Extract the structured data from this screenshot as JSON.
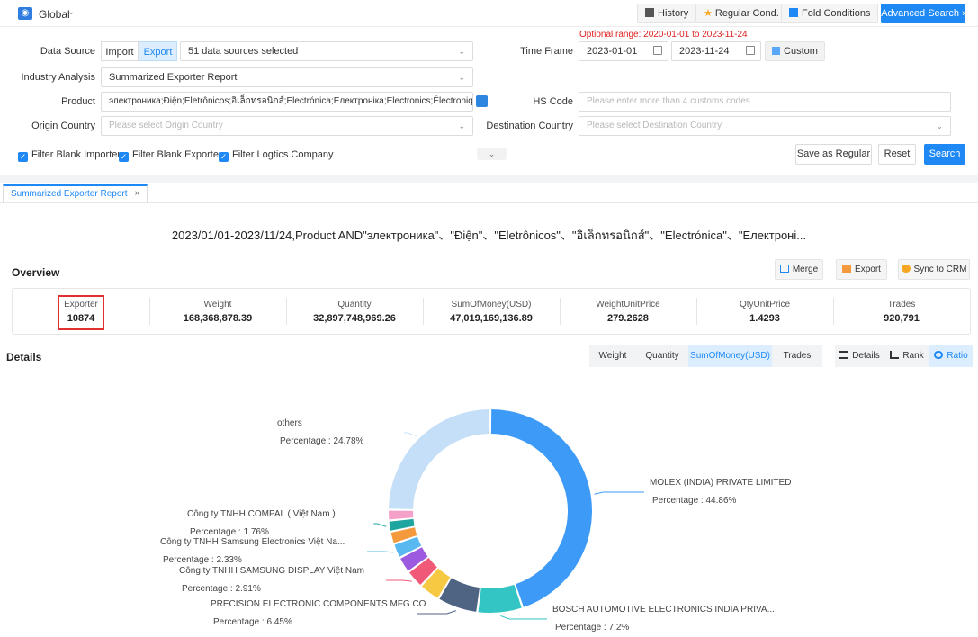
{
  "topbar": {
    "global_label": "Global",
    "history_label": "History",
    "regular_cond_label": "Regular Cond.",
    "fold_conditions_label": "Fold Conditions",
    "advanced_search_label": "Advanced Search ›"
  },
  "form": {
    "data_source_label": "Data Source",
    "import_label": "Import",
    "export_label": "Export",
    "data_sources_value": "51 data sources selected",
    "industry_analysis_label": "Industry Analysis",
    "industry_analysis_value": "Summarized Exporter Report",
    "product_label": "Product",
    "product_value": "электроника;Điện;Eletrônicos;อิเล็กทรอนิกส์;Electrónica;Електроніка;Electronics;Électronique;Elect",
    "origin_country_label": "Origin Country",
    "origin_country_placeholder": "Please select Origin Country",
    "optional_range": "Optional range:  2020-01-01 to 2023-11-24",
    "time_frame_label": "Time Frame",
    "date_start": "2023-01-01",
    "date_end": "2023-11-24",
    "custom_label": "Custom",
    "hs_code_label": "HS Code",
    "hs_code_placeholder": "Please enter more than 4 customs codes",
    "destination_country_label": "Destination Country",
    "destination_country_placeholder": "Please select Destination Country",
    "filter_blank_importers": "Filter Blank Importers",
    "filter_blank_exporters": "Filter Blank Exporters",
    "filter_logistics": "Filter Logtics Company",
    "save_regular_label": "Save as Regular",
    "reset_label": "Reset",
    "search_label": "Search"
  },
  "tab": {
    "label": "Summarized Exporter Report",
    "close": "×"
  },
  "query_title": "2023/01/01-2023/11/24,Product AND\"электроника\"、\"Điện\"、\"Eletrônicos\"、\"อิเล็กทรอนิกส์\"、\"Electrónica\"、\"Електроні...",
  "overview": {
    "title": "Overview",
    "merge_label": "Merge",
    "export_label": "Export",
    "sync_label": "Sync to CRM",
    "stats": [
      {
        "label": "Exporter",
        "value": "10874"
      },
      {
        "label": "Weight",
        "value": "168,368,878.39"
      },
      {
        "label": "Quantity",
        "value": "32,897,748,969.26"
      },
      {
        "label": "SumOfMoney(USD)",
        "value": "47,019,169,136.89"
      },
      {
        "label": "WeightUnitPrice",
        "value": "279.2628"
      },
      {
        "label": "QtyUnitPrice",
        "value": "1.4293"
      },
      {
        "label": "Trades",
        "value": "920,791"
      }
    ]
  },
  "details": {
    "title": "Details",
    "metrics": [
      "Weight",
      "Quantity",
      "SumOfMoney(USD)",
      "Trades"
    ],
    "active_metric": "SumOfMoney(USD)",
    "views": [
      "Details",
      "Rank",
      "Ratio"
    ],
    "active_view": "Ratio"
  },
  "chart_data": {
    "type": "pie",
    "slices": [
      {
        "name": "MOLEX (INDIA) PRIVATE LIMITED",
        "value": 44.86,
        "label": "Percentage :  44.86%",
        "color": "#3d9bf7"
      },
      {
        "name": "BOSCH AUTOMOTIVE ELECTRONICS INDIA PRIVA...",
        "value": 7.2,
        "label": "Percentage :  7.2%",
        "color": "#33c4c4"
      },
      {
        "name": "PRECISION ELECTRONIC COMPONENTS MFG CO",
        "value": 6.45,
        "label": "Percentage :  6.45%",
        "color": "#4f6382"
      },
      {
        "name": "",
        "value": 3.4,
        "label": "",
        "color": "#f7c842"
      },
      {
        "name": "Công ty TNHH SAMSUNG DISPLAY Việt Nam",
        "value": 2.91,
        "label": "Percentage :  2.91%",
        "color": "#f05a78"
      },
      {
        "name": "",
        "value": 2.6,
        "label": "",
        "color": "#9b5ae0"
      },
      {
        "name": "Công ty TNHH Samsung Electronics Việt Na...",
        "value": 2.33,
        "label": "Percentage :  2.33%",
        "color": "#5ab8f0"
      },
      {
        "name": "",
        "value": 2.0,
        "label": "",
        "color": "#f59a3c"
      },
      {
        "name": "Công ty TNHH COMPAL ( Việt Nam )",
        "value": 1.76,
        "label": "Percentage :  1.76%",
        "color": "#1fa5a0"
      },
      {
        "name": "",
        "value": 1.7,
        "label": "",
        "color": "#f5a0c8"
      },
      {
        "name": "others",
        "value": 24.78,
        "label": "Percentage :  24.78%",
        "color": "#c6dff8"
      }
    ]
  }
}
